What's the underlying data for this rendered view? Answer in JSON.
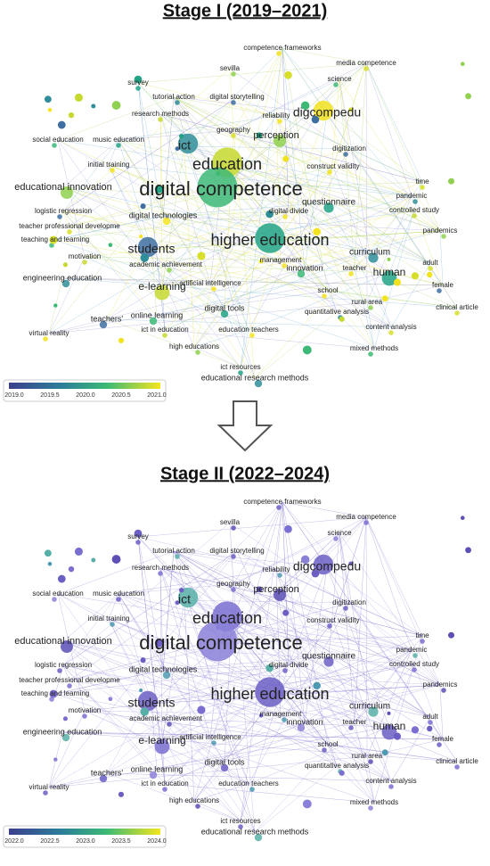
{
  "stage1": {
    "title": "Stage I (2019–2021)",
    "nodes": [
      "competence frameworks",
      "media competence",
      "sevilla",
      "science",
      "survey",
      "tutorial action",
      "digital storytelling",
      "research methods",
      "reliability",
      "digcompedu",
      "geography",
      "perception",
      "social education",
      "music education",
      "ict",
      "digitization",
      "education",
      "initial training",
      "construct validity",
      "time",
      "educational innovation",
      "digital competence",
      "questionnaire",
      "pandemic",
      "logistic regression",
      "controlled study",
      "digital technologies",
      "digital divide",
      "teacher professional developme",
      "pandemics",
      "teaching and learning",
      "higher education",
      "curriculum",
      "students",
      "motivation",
      "management",
      "teacher",
      "adult",
      "academic achievement",
      "innovation",
      "human",
      "engineering education",
      "female",
      "e-learning",
      "artificial intelligence",
      "school",
      "clinical article",
      "rural area",
      "online learning",
      "digital tools",
      "quantitative analysis",
      "teachers'",
      "ict in education",
      "education teachers",
      "virtual reality",
      "content analysis",
      "high educations",
      "mixed methods",
      "ict resources",
      "educational research methods"
    ],
    "legend_ticks": [
      "2019.0",
      "2019.5",
      "2020.0",
      "2020.5",
      "2021.0"
    ]
  },
  "stage2": {
    "title": "Stage II (2022–2024)",
    "nodes": [
      "competence frameworks",
      "media competence",
      "sevilla",
      "science",
      "survey",
      "tutorial action",
      "digital storytelling",
      "research methods",
      "reliability",
      "digcompedu",
      "geography",
      "perception",
      "social education",
      "music education",
      "ict",
      "digitization",
      "education",
      "initial training",
      "construct validity",
      "time",
      "educational innovation",
      "digital competence",
      "questionnaire",
      "pandemic",
      "logistic regression",
      "controlled study",
      "digital technologies",
      "digital divide",
      "teacher professional developme",
      "pandemics",
      "teaching and learning",
      "higher education",
      "curriculum",
      "students",
      "motivation",
      "management",
      "teacher",
      "adult",
      "academic achievement",
      "innovation",
      "human",
      "engineering education",
      "female",
      "e-learning",
      "artificial intelligence",
      "school",
      "clinical article",
      "rural area",
      "online learning",
      "digital tools",
      "quantitative analysis",
      "teachers'",
      "ict in education",
      "education teachers",
      "virtual reality",
      "content analysis",
      "high educations",
      "mixed methods",
      "ict resources",
      "educational research methods"
    ],
    "legend_ticks": [
      "2022.0",
      "2022.5",
      "2023.0",
      "2023.5",
      "2024.0"
    ]
  }
}
